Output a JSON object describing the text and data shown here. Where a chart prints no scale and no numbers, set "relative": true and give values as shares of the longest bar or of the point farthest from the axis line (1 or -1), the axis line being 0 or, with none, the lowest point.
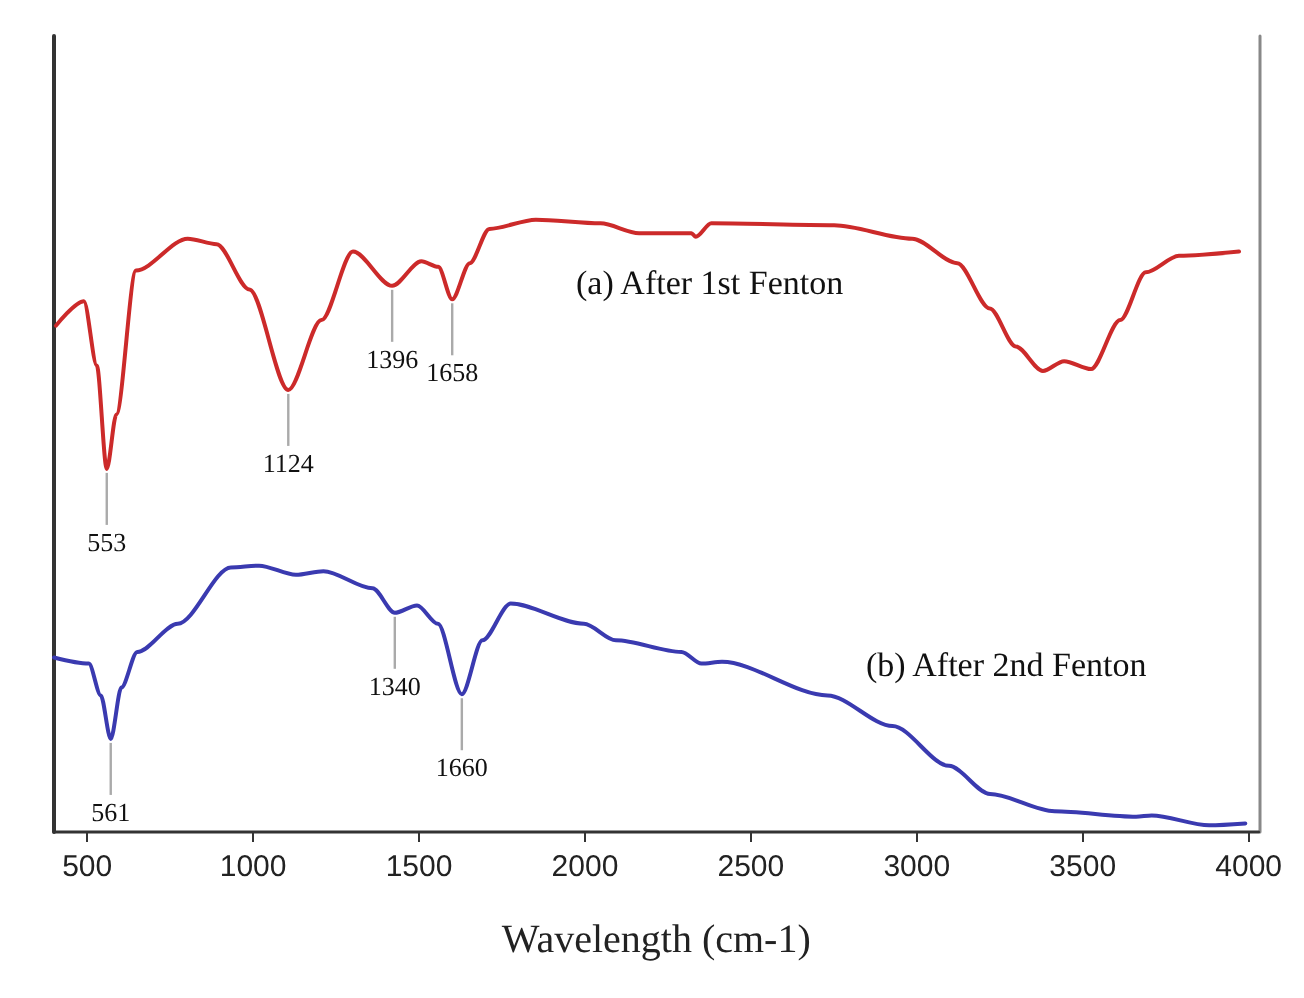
{
  "chart_data": {
    "type": "line",
    "xlabel": "Wavelength (cm-1)",
    "relative": true,
    "xlim": [
      400,
      4030
    ],
    "xticks": [
      500,
      1000,
      1500,
      2000,
      2500,
      3000,
      3500,
      4000
    ],
    "grid": false,
    "legend": false,
    "marker": "none",
    "line_style": "solid",
    "series": [
      {
        "name": "(a) After 1st Fenton",
        "color": "#cc2a2a",
        "x": [
          406,
          490,
          529,
          559,
          588,
          647,
          803,
          890,
          989,
          1106,
          1206,
          1301,
          1419,
          1507,
          1558,
          1600,
          1653,
          1712,
          1852,
          2047,
          2163,
          2321,
          2334,
          2381,
          2751,
          2986,
          3122,
          3220,
          3298,
          3380,
          3444,
          3525,
          3613,
          3690,
          3790,
          3971
        ],
        "values": [
          0.827,
          0.867,
          0.762,
          0.593,
          0.682,
          0.917,
          0.969,
          0.96,
          0.886,
          0.722,
          0.836,
          0.948,
          0.892,
          0.932,
          0.923,
          0.87,
          0.929,
          0.985,
          1,
          0.994,
          0.978,
          0.978,
          0.972,
          0.994,
          0.991,
          0.969,
          0.929,
          0.855,
          0.793,
          0.753,
          0.769,
          0.756,
          0.836,
          0.914,
          0.941,
          0.948
        ]
      },
      {
        "name": "(b) After 2nd Fenton",
        "color": "#3a3ab0",
        "x": [
          400,
          505,
          541,
          571,
          603,
          651,
          773,
          933,
          1018,
          1129,
          1212,
          1360,
          1427,
          1494,
          1557,
          1629,
          1691,
          1776,
          1997,
          2093,
          2291,
          2351,
          2413,
          2731,
          2927,
          3097,
          3221,
          3415,
          3661,
          3708,
          3881,
          3990
        ],
        "values": [
          0.285,
          0.275,
          0.223,
          0.152,
          0.236,
          0.294,
          0.34,
          0.432,
          0.435,
          0.42,
          0.426,
          0.398,
          0.358,
          0.37,
          0.34,
          0.225,
          0.313,
          0.373,
          0.34,
          0.313,
          0.294,
          0.275,
          0.278,
          0.223,
          0.173,
          0.108,
          0.062,
          0.034,
          0.025,
          0.027,
          0.011,
          0.014
        ]
      }
    ],
    "annotations": [
      {
        "text": "553",
        "x": 559,
        "y": 0.593
      },
      {
        "text": "1124",
        "x": 1106,
        "y": 0.722
      },
      {
        "text": "1396",
        "x": 1419,
        "y": 0.892
      },
      {
        "text": "1658",
        "x": 1600,
        "y": 0.87
      },
      {
        "text": "561",
        "x": 571,
        "y": 0.152
      },
      {
        "text": "1340",
        "x": 1427,
        "y": 0.358
      },
      {
        "text": "1660",
        "x": 1629,
        "y": 0.225
      }
    ]
  }
}
